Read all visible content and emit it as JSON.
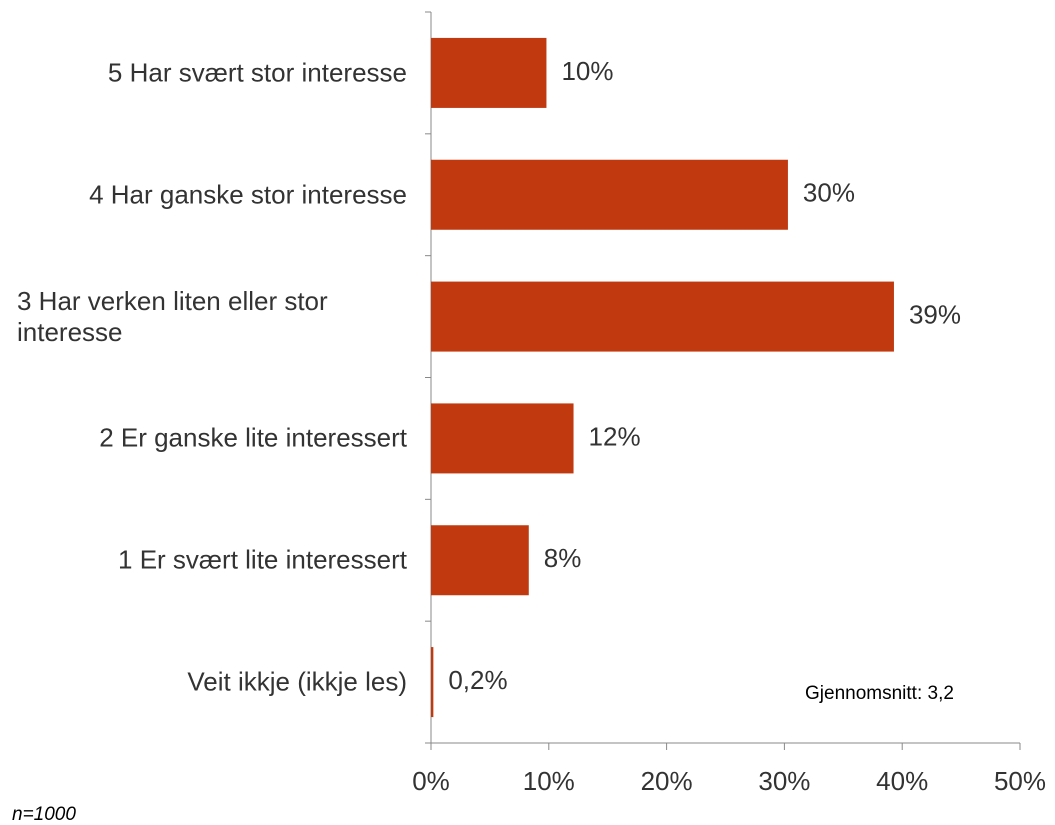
{
  "chart_data": {
    "type": "bar",
    "orientation": "horizontal",
    "categories": [
      "5 Har svært stor interesse",
      "4 Har ganske stor interesse",
      "3 Har verken liten eller stor interesse",
      "2 Er ganske lite interessert",
      "1 Er svært lite interessert",
      "Veit ikkje (ikkje les)"
    ],
    "values": [
      9.8,
      30.3,
      39.3,
      12.1,
      8.3,
      0.2
    ],
    "value_labels": [
      "10%",
      "30%",
      "39%",
      "12%",
      "8%",
      "0,2%"
    ],
    "color": "#c0390f",
    "xlim": [
      0,
      50
    ],
    "xticks": [
      {
        "value": 0,
        "label": "0%"
      },
      {
        "value": 10,
        "label": "10%"
      },
      {
        "value": 20,
        "label": "20%"
      },
      {
        "value": 30,
        "label": "30%"
      },
      {
        "value": 40,
        "label": "40%"
      },
      {
        "value": 50,
        "label": "50%"
      }
    ],
    "annotation": "Gjennomsnitt: 3,2",
    "note": "n=1000"
  }
}
